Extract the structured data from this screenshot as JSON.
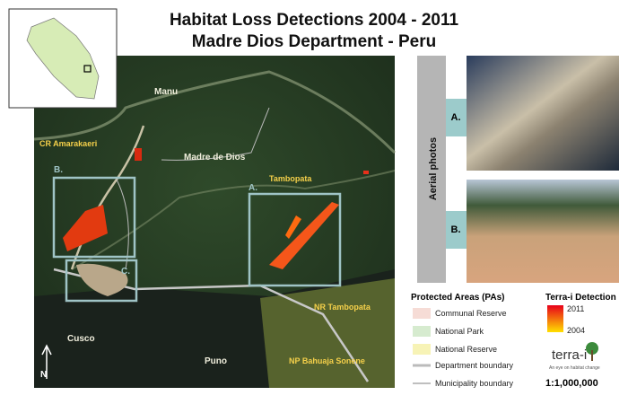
{
  "header": {
    "title": "Habitat Loss Detections 2004 - 2011",
    "subtitle": "Madre Dios Department - Peru"
  },
  "map": {
    "labels": {
      "manu": "Manu",
      "amarakaeri": "CR Amarakaeri",
      "madre_de_dios": "Madre de Dios",
      "tambopata": "Tambopata",
      "cusco": "Cusco",
      "puno": "Puno",
      "nr_tambopata": "NR Tambopata",
      "np_bahuaja": "NP Bahuaja Sonene"
    },
    "boxes": {
      "a": "A.",
      "b": "B.",
      "c": "C."
    },
    "north": "N"
  },
  "photos": {
    "title": "Aerial photos",
    "a": "A.",
    "b": "B."
  },
  "legend": {
    "pa_title": "Protected Areas (PAs)",
    "items": [
      "Communal Reserve",
      "National Park",
      "National Reserve",
      "Department boundary",
      "Municipality boundary"
    ],
    "detection_title": "Terra-i Detection",
    "max": 2011,
    "min": 2004
  },
  "logo": {
    "name": "terra-i",
    "tagline": "An eye on habitat change"
  },
  "scale": "1:1,000,000"
}
